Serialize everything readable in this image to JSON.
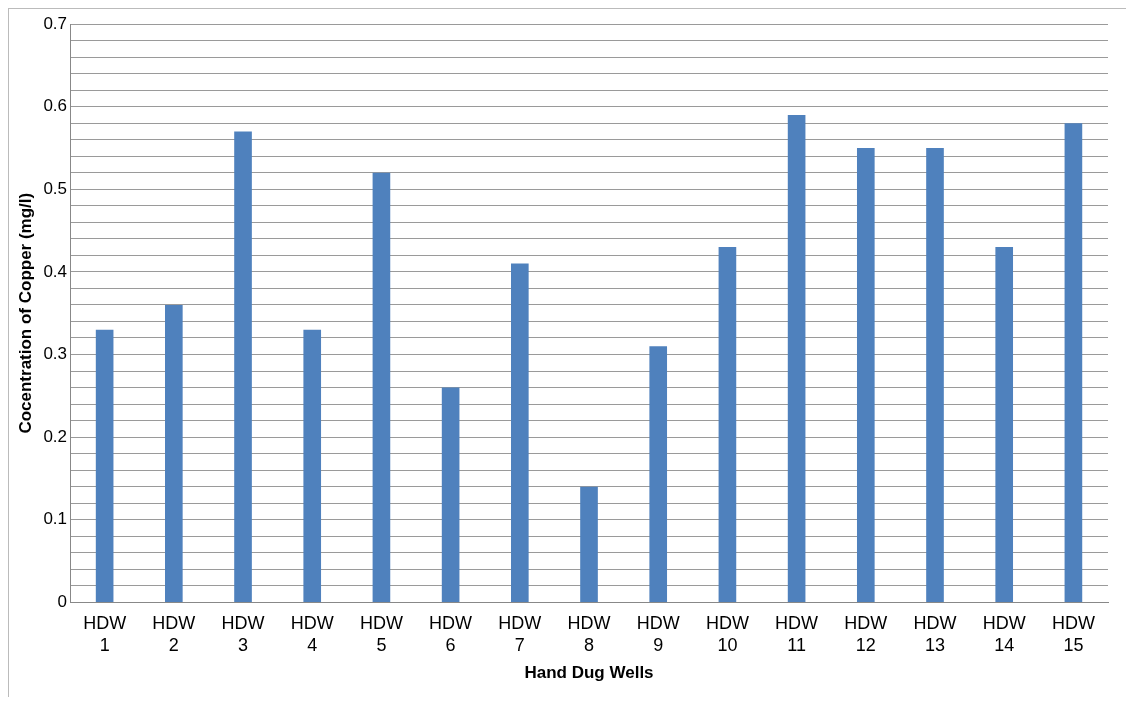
{
  "chart_data": {
    "type": "bar",
    "xlabel": "Hand Dug Wells",
    "ylabel": "Cocentration of Copper (mg/l)",
    "categories": [
      "HDW 1",
      "HDW 2",
      "HDW 3",
      "HDW 4",
      "HDW 5",
      "HDW 6",
      "HDW 7",
      "HDW 8",
      "HDW 9",
      "HDW 10",
      "HDW 11",
      "HDW 12",
      "HDW 13",
      "HDW 14",
      "HDW 15"
    ],
    "values": [
      0.33,
      0.36,
      0.57,
      0.33,
      0.52,
      0.26,
      0.41,
      0.14,
      0.31,
      0.43,
      0.59,
      0.55,
      0.55,
      0.43,
      0.58
    ],
    "color": "#4f81bd",
    "ylim": [
      0,
      0.7
    ],
    "yticks": [
      0,
      {
        "value": 0.02,
        "label": null
      },
      {
        "value": 0.04,
        "label": null
      },
      {
        "value": 0.06,
        "label": null
      },
      {
        "value": 0.08,
        "label": null
      },
      0.1,
      {
        "value": 0.12,
        "label": null
      },
      {
        "value": 0.14,
        "label": null
      },
      {
        "value": 0.16,
        "label": null
      },
      {
        "value": 0.18,
        "label": null
      },
      0.2,
      {
        "value": 0.22,
        "label": null
      },
      {
        "value": 0.24,
        "label": null
      },
      {
        "value": 0.26,
        "label": null
      },
      {
        "value": 0.28,
        "label": null
      },
      0.3,
      {
        "value": 0.32,
        "label": null
      },
      {
        "value": 0.34,
        "label": null
      },
      {
        "value": 0.36,
        "label": null
      },
      {
        "value": 0.38,
        "label": null
      },
      0.4,
      {
        "value": 0.42,
        "label": null
      },
      {
        "value": 0.44,
        "label": null
      },
      {
        "value": 0.46,
        "label": null
      },
      {
        "value": 0.48,
        "label": null
      },
      0.5,
      {
        "value": 0.52,
        "label": null
      },
      {
        "value": 0.54,
        "label": null
      },
      {
        "value": 0.56,
        "label": null
      },
      {
        "value": 0.58,
        "label": null
      },
      0.6,
      {
        "value": 0.62,
        "label": null
      },
      {
        "value": 0.64,
        "label": null
      },
      {
        "value": 0.66,
        "label": null
      },
      {
        "value": 0.68,
        "label": null
      },
      0.7
    ],
    "grid": "y"
  }
}
